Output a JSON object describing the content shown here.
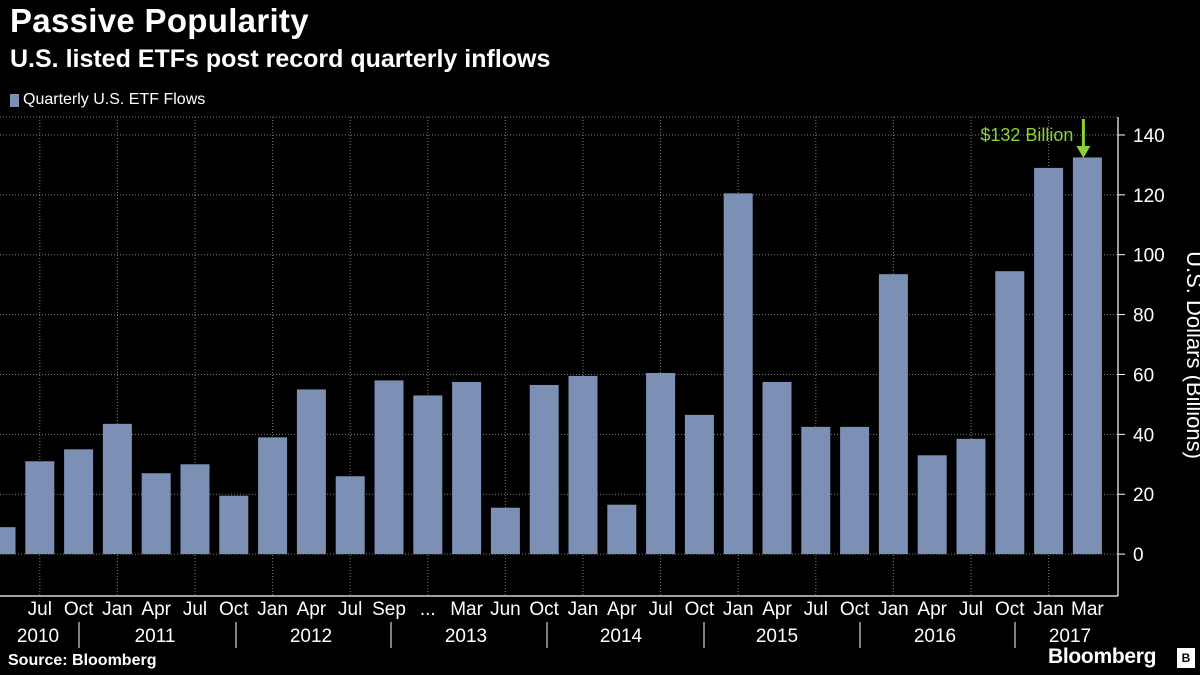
{
  "title": "Passive Popularity",
  "subtitle": "U.S. listed ETFs post record quarterly inflows",
  "source": "Source: Bloomberg",
  "brand": "Bloomberg",
  "brand_badge": "B",
  "colors": {
    "bar": "#7b90b4",
    "grid": "#7a7a7a",
    "annotation": "#8bd13a",
    "background": "#000000"
  },
  "chart_data": {
    "type": "bar",
    "series": [
      {
        "name": "Quarterly U.S. ETF Flows",
        "values": [
          9,
          31,
          35,
          43.5,
          27,
          30,
          19.5,
          39,
          55,
          26,
          58,
          53,
          57.5,
          15.5,
          56.5,
          59.5,
          16.5,
          60.5,
          46.5,
          120.5,
          57.5,
          42.5,
          42.5,
          93.5,
          33,
          38.5,
          94.5,
          129,
          132.5
        ]
      }
    ],
    "tick_labels": [
      "",
      "Jul",
      "Oct",
      "Jan",
      "Apr",
      "Jul",
      "Oct",
      "Jan",
      "Apr",
      "Jul",
      "Sep",
      "...",
      "Mar",
      "Jun",
      "Oct",
      "Jan",
      "Apr",
      "Jul",
      "Oct",
      "Jan",
      "Apr",
      "Jul",
      "Oct",
      "Jan",
      "Apr",
      "Jul",
      "Oct",
      "Jan",
      "Mar"
    ],
    "year_labels": [
      "2010",
      "2011",
      "2012",
      "2013",
      "2014",
      "2015",
      "2016",
      "2017"
    ],
    "ylabel": "U.S. Dollars (Billions)",
    "xlabel": "",
    "ylim": [
      -14,
      146
    ],
    "yticks": [
      0,
      20,
      40,
      60,
      80,
      100,
      120,
      140
    ],
    "grid": true,
    "legend": "top-left",
    "annotation": {
      "text": "$132 Billion",
      "target_index": 28
    }
  }
}
